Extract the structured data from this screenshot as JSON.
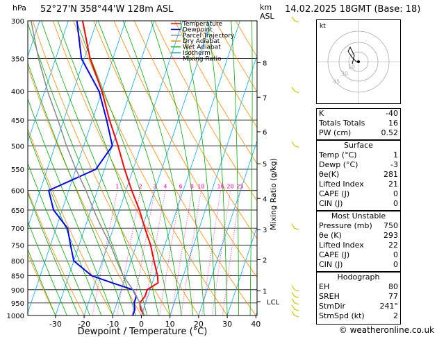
{
  "header": {
    "hpa_label": "hPa",
    "location": "52°27'N 358°44'W 128m ASL",
    "km_label": "km",
    "asl_label": "ASL",
    "date": "14.02.2025 18GMT (Base: 18)"
  },
  "legend": [
    {
      "label": "Temperature",
      "color": "#ff0000",
      "style": "solid"
    },
    {
      "label": "Dewpoint",
      "color": "#0000ff",
      "style": "solid"
    },
    {
      "label": "Parcel Trajectory",
      "color": "#888888",
      "style": "solid"
    },
    {
      "label": "Dry Adiabat",
      "color": "#ff8800",
      "style": "solid"
    },
    {
      "label": "Wet Adiabat",
      "color": "#00aa00",
      "style": "solid"
    },
    {
      "label": "Isotherm",
      "color": "#00aaff",
      "style": "solid"
    },
    {
      "label": "Mixing Ratio",
      "color": "#ff00aa",
      "style": "dotted"
    }
  ],
  "chart_data": {
    "type": "line",
    "xlabel": "Dewpoint / Temperature (°C)",
    "ylabel": "Mixing Ratio (g/kg)",
    "x_ticks": [
      -30,
      -20,
      -10,
      0,
      10,
      20,
      30,
      40
    ],
    "p_ticks": [
      300,
      350,
      400,
      450,
      500,
      550,
      600,
      650,
      700,
      750,
      800,
      850,
      900,
      950,
      1000
    ],
    "km_ticks": [
      {
        "km": "1",
        "p": 904
      },
      {
        "km": "2",
        "p": 796
      },
      {
        "km": "3",
        "p": 704
      },
      {
        "km": "4",
        "p": 620
      },
      {
        "km": "5",
        "p": 538
      },
      {
        "km": "6",
        "p": 472
      },
      {
        "km": "7",
        "p": 410
      },
      {
        "km": "8",
        "p": 356
      }
    ],
    "lcl_label": "LCL",
    "lcl_p": 945,
    "mixing_ratio_labels": [
      "1",
      "2",
      "3",
      "4",
      "6",
      "8",
      "10",
      "16",
      "20",
      "25"
    ],
    "series": [
      {
        "name": "Temperature",
        "color": "#ff0000",
        "p": [
          1000,
          975,
          950,
          925,
          900,
          875,
          850,
          800,
          750,
          700,
          650,
          600,
          550,
          500,
          450,
          400,
          350,
          300
        ],
        "t": [
          1,
          -1,
          -2,
          -1,
          -1,
          2,
          1,
          -2,
          -5,
          -9,
          -13,
          -18,
          -23,
          -28,
          -34,
          -40,
          -48,
          -55
        ]
      },
      {
        "name": "Dewpoint",
        "color": "#0000ff",
        "p": [
          1000,
          975,
          950,
          925,
          900,
          875,
          850,
          800,
          750,
          700,
          650,
          600,
          550,
          500,
          450,
          400,
          350,
          300
        ],
        "t": [
          -3,
          -3,
          -4,
          -4,
          -6,
          -14,
          -22,
          -30,
          -33,
          -36,
          -43,
          -47,
          -33,
          -30,
          -35,
          -41,
          -51,
          -57
        ]
      },
      {
        "name": "Parcel Trajectory",
        "color": "#888888",
        "p": [
          1000,
          950,
          900,
          850,
          800,
          750,
          700,
          650,
          600,
          550,
          500,
          450,
          400,
          350,
          300
        ],
        "t": [
          1,
          -2,
          -6,
          -11,
          -15,
          -19,
          -24,
          -29,
          -34,
          -40,
          -46,
          -52,
          -59,
          -66,
          -73
        ]
      }
    ]
  },
  "hodograph": {
    "unit": "kt",
    "ring_labels": [
      "10",
      "30",
      "45"
    ],
    "u": [
      0,
      -1,
      -3,
      -5,
      -4,
      -2,
      -3
    ],
    "v": [
      0,
      0,
      2,
      5,
      7,
      3,
      -1
    ]
  },
  "indices": [
    {
      "label": "K",
      "value": "-40"
    },
    {
      "label": "Totals Totals",
      "value": "16"
    },
    {
      "label": "PW (cm)",
      "value": "0.52"
    }
  ],
  "surface": {
    "title": "Surface",
    "rows": [
      {
        "label": "Temp (°C)",
        "value": "1"
      },
      {
        "label": "Dewp (°C)",
        "value": "-3"
      },
      {
        "label": "θe(K)",
        "value": "281"
      },
      {
        "label": "Lifted Index",
        "value": "21"
      },
      {
        "label": "CAPE (J)",
        "value": "0"
      },
      {
        "label": "CIN (J)",
        "value": "0"
      }
    ]
  },
  "unstable": {
    "title": "Most Unstable",
    "rows": [
      {
        "label": "Pressure (mb)",
        "value": "750"
      },
      {
        "label": "θe (K)",
        "value": "293"
      },
      {
        "label": "Lifted Index",
        "value": "22"
      },
      {
        "label": "CAPE (J)",
        "value": "0"
      },
      {
        "label": "CIN (J)",
        "value": "0"
      }
    ]
  },
  "hodo_table": {
    "title": "Hodograph",
    "rows": [
      {
        "label": "EH",
        "value": "80"
      },
      {
        "label": "SREH",
        "value": "77"
      },
      {
        "label": "StmDir",
        "value": "241°"
      },
      {
        "label": "StmSpd (kt)",
        "value": "2"
      }
    ]
  },
  "footer": "© weatheronline.co.uk"
}
